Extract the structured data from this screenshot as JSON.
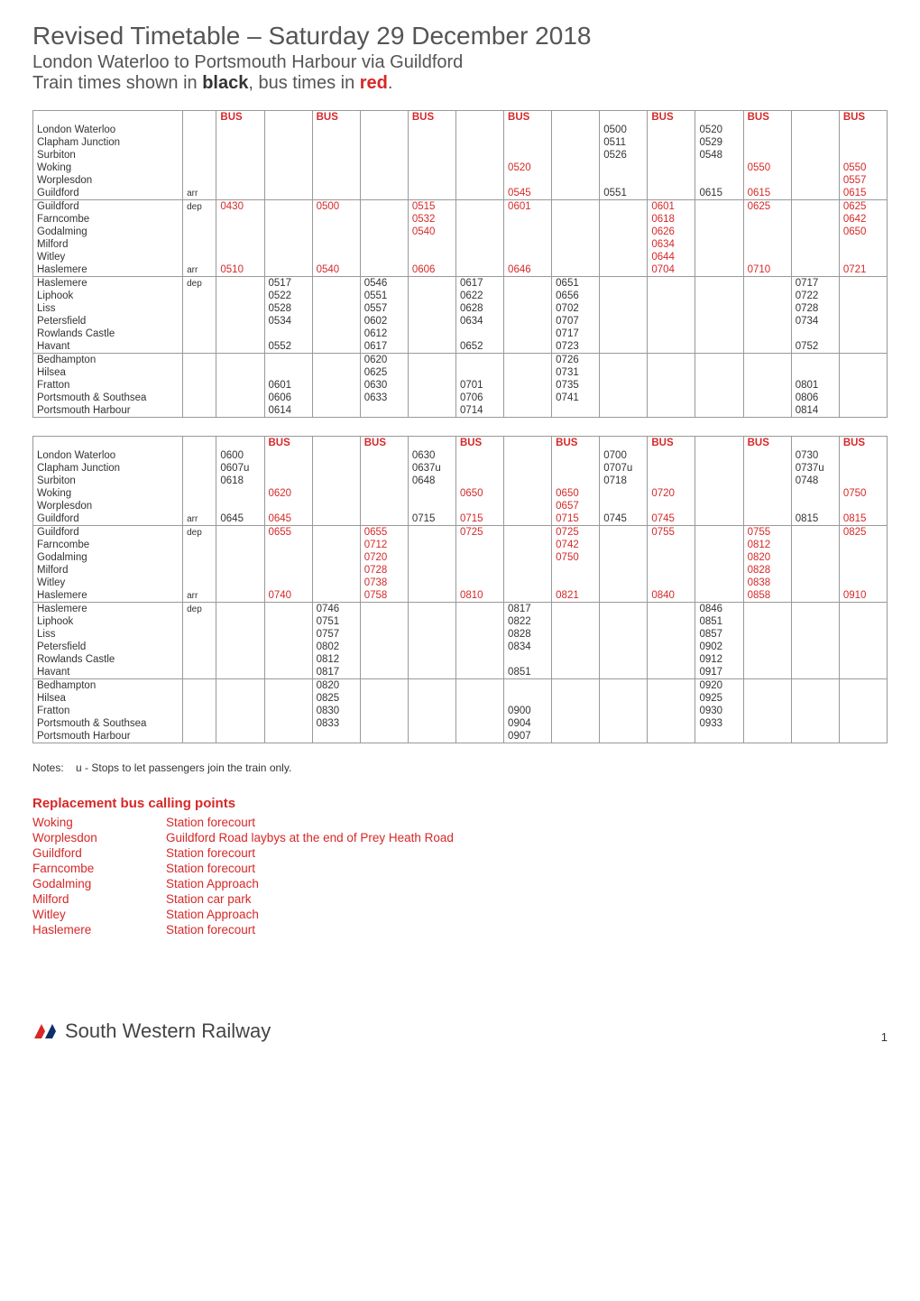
{
  "header": {
    "title": "Revised Timetable – Saturday 29 December 2018",
    "route": "London Waterloo to Portsmouth Harbour via Guildford",
    "legend_prefix": "Train times shown in ",
    "legend_black": "black",
    "legend_mid": ", bus times in ",
    "legend_red": "red",
    "legend_suffix": "."
  },
  "colors": {
    "bus": "#d62828",
    "text": "#333333",
    "border": "#999999",
    "heading": "#555555"
  },
  "bus_label": "BUS",
  "stations": [
    {
      "name": "London Waterloo",
      "ad": ""
    },
    {
      "name": "Clapham Junction",
      "ad": ""
    },
    {
      "name": "Surbiton",
      "ad": ""
    },
    {
      "name": "Woking",
      "ad": ""
    },
    {
      "name": "Worplesdon",
      "ad": ""
    },
    {
      "name": "Guildford",
      "ad": "arr"
    },
    {
      "name": "Guildford",
      "ad": "dep"
    },
    {
      "name": "Farncombe",
      "ad": ""
    },
    {
      "name": "Godalming",
      "ad": ""
    },
    {
      "name": "Milford",
      "ad": ""
    },
    {
      "name": "Witley",
      "ad": ""
    },
    {
      "name": "Haslemere",
      "ad": "arr"
    },
    {
      "name": "Haslemere",
      "ad": "dep"
    },
    {
      "name": "Liphook",
      "ad": ""
    },
    {
      "name": "Liss",
      "ad": ""
    },
    {
      "name": "Petersfield",
      "ad": ""
    },
    {
      "name": "Rowlands Castle",
      "ad": ""
    },
    {
      "name": "Havant",
      "ad": ""
    },
    {
      "name": "Bedhampton",
      "ad": ""
    },
    {
      "name": "Hilsea",
      "ad": ""
    },
    {
      "name": "Fratton",
      "ad": ""
    },
    {
      "name": "Portsmouth & Southsea",
      "ad": ""
    },
    {
      "name": "Portsmouth Harbour",
      "ad": ""
    }
  ],
  "section_breaks": [
    6,
    12,
    18
  ],
  "table1": {
    "columns": [
      {
        "bus": true,
        "times": [
          "",
          "",
          "",
          "",
          "",
          "",
          "0430",
          "",
          "",
          "",
          "",
          "0510",
          "",
          "",
          "",
          "",
          "",
          "",
          "",
          "",
          "",
          "",
          ""
        ]
      },
      {
        "bus": false,
        "times": [
          "",
          "",
          "",
          "",
          "",
          "",
          "",
          "",
          "",
          "",
          "",
          "",
          "0517",
          "0522",
          "0528",
          "0534",
          "",
          "0552",
          "",
          "",
          "0601",
          "0606",
          "0614"
        ]
      },
      {
        "bus": true,
        "times": [
          "",
          "",
          "",
          "",
          "",
          "",
          "0500",
          "",
          "",
          "",
          "",
          "0540",
          "",
          "",
          "",
          "",
          "",
          "",
          "",
          "",
          "",
          "",
          ""
        ]
      },
      {
        "bus": false,
        "times": [
          "",
          "",
          "",
          "",
          "",
          "",
          "",
          "",
          "",
          "",
          "",
          "",
          "0546",
          "0551",
          "0557",
          "0602",
          "0612",
          "0617",
          "0620",
          "0625",
          "0630",
          "0633",
          ""
        ]
      },
      {
        "bus": true,
        "times": [
          "",
          "",
          "",
          "",
          "",
          "",
          "0515",
          "0532",
          "0540",
          "",
          "",
          "0606",
          "",
          "",
          "",
          "",
          "",
          "",
          "",
          "",
          "",
          "",
          ""
        ]
      },
      {
        "bus": false,
        "times": [
          "",
          "",
          "",
          "",
          "",
          "",
          "",
          "",
          "",
          "",
          "",
          "",
          "0617",
          "0622",
          "0628",
          "0634",
          "",
          "0652",
          "",
          "",
          "0701",
          "0706",
          "0714"
        ]
      },
      {
        "bus": true,
        "times": [
          "",
          "",
          "",
          "0520",
          "",
          "0545",
          "0601",
          "",
          "",
          "",
          "",
          "0646",
          "",
          "",
          "",
          "",
          "",
          "",
          "",
          "",
          "",
          "",
          ""
        ]
      },
      {
        "bus": false,
        "times": [
          "",
          "",
          "",
          "",
          "",
          "",
          "",
          "",
          "",
          "",
          "",
          "",
          "0651",
          "0656",
          "0702",
          "0707",
          "0717",
          "0723",
          "0726",
          "0731",
          "0735",
          "0741",
          ""
        ]
      },
      {
        "bus": false,
        "times": [
          "0500",
          "0511",
          "0526",
          "",
          "",
          "0551",
          "",
          "",
          "",
          "",
          "",
          "",
          "",
          "",
          "",
          "",
          "",
          "",
          "",
          "",
          "",
          "",
          ""
        ]
      },
      {
        "bus": true,
        "times": [
          "",
          "",
          "",
          "",
          "",
          "",
          "0601",
          "0618",
          "0626",
          "0634",
          "0644",
          "0704",
          "",
          "",
          "",
          "",
          "",
          "",
          "",
          "",
          "",
          "",
          ""
        ]
      },
      {
        "bus": false,
        "times": [
          "0520",
          "0529",
          "0548",
          "",
          "",
          "0615",
          "",
          "",
          "",
          "",
          "",
          "",
          "",
          "",
          "",
          "",
          "",
          "",
          "",
          "",
          "",
          "",
          ""
        ]
      },
      {
        "bus": true,
        "times": [
          "",
          "",
          "",
          "0550",
          "",
          "0615",
          "0625",
          "",
          "",
          "",
          "",
          "0710",
          "",
          "",
          "",
          "",
          "",
          "",
          "",
          "",
          "",
          "",
          ""
        ]
      },
      {
        "bus": false,
        "times": [
          "",
          "",
          "",
          "",
          "",
          "",
          "",
          "",
          "",
          "",
          "",
          "",
          "0717",
          "0722",
          "0728",
          "0734",
          "",
          "0752",
          "",
          "",
          "0801",
          "0806",
          "0814"
        ]
      },
      {
        "bus": true,
        "times": [
          "",
          "",
          "",
          "0550",
          "0557",
          "0615",
          "0625",
          "0642",
          "0650",
          "",
          "",
          "0721",
          "",
          "",
          "",
          "",
          "",
          "",
          "",
          "",
          "",
          "",
          ""
        ]
      }
    ]
  },
  "table2": {
    "columns": [
      {
        "bus": false,
        "times": [
          "0600",
          "0607u",
          "0618",
          "",
          "",
          "0645",
          "",
          "",
          "",
          "",
          "",
          "",
          "",
          "",
          "",
          "",
          "",
          "",
          "",
          "",
          "",
          "",
          ""
        ]
      },
      {
        "bus": true,
        "times": [
          "",
          "",
          "",
          "0620",
          "",
          "0645",
          "0655",
          "",
          "",
          "",
          "",
          "0740",
          "",
          "",
          "",
          "",
          "",
          "",
          "",
          "",
          "",
          "",
          ""
        ]
      },
      {
        "bus": false,
        "times": [
          "",
          "",
          "",
          "",
          "",
          "",
          "",
          "",
          "",
          "",
          "",
          "",
          "0746",
          "0751",
          "0757",
          "0802",
          "0812",
          "0817",
          "0820",
          "0825",
          "0830",
          "0833",
          ""
        ]
      },
      {
        "bus": true,
        "times": [
          "",
          "",
          "",
          "",
          "",
          "",
          "0655",
          "0712",
          "0720",
          "0728",
          "0738",
          "0758",
          "",
          "",
          "",
          "",
          "",
          "",
          "",
          "",
          "",
          "",
          ""
        ]
      },
      {
        "bus": false,
        "times": [
          "0630",
          "0637u",
          "0648",
          "",
          "",
          "0715",
          "",
          "",
          "",
          "",
          "",
          "",
          "",
          "",
          "",
          "",
          "",
          "",
          "",
          "",
          "",
          "",
          ""
        ]
      },
      {
        "bus": true,
        "times": [
          "",
          "",
          "",
          "0650",
          "",
          "0715",
          "0725",
          "",
          "",
          "",
          "",
          "0810",
          "",
          "",
          "",
          "",
          "",
          "",
          "",
          "",
          "",
          "",
          ""
        ]
      },
      {
        "bus": false,
        "times": [
          "",
          "",
          "",
          "",
          "",
          "",
          "",
          "",
          "",
          "",
          "",
          "",
          "0817",
          "0822",
          "0828",
          "0834",
          "",
          "0851",
          "",
          "",
          "0900",
          "0904",
          "0907"
        ]
      },
      {
        "bus": true,
        "times": [
          "",
          "",
          "",
          "0650",
          "0657",
          "0715",
          "0725",
          "0742",
          "0750",
          "",
          "",
          "0821",
          "",
          "",
          "",
          "",
          "",
          "",
          "",
          "",
          "",
          "",
          ""
        ]
      },
      {
        "bus": false,
        "times": [
          "0700",
          "0707u",
          "0718",
          "",
          "",
          "0745",
          "",
          "",
          "",
          "",
          "",
          "",
          "",
          "",
          "",
          "",
          "",
          "",
          "",
          "",
          "",
          "",
          ""
        ]
      },
      {
        "bus": true,
        "times": [
          "",
          "",
          "",
          "0720",
          "",
          "0745",
          "0755",
          "",
          "",
          "",
          "",
          "0840",
          "",
          "",
          "",
          "",
          "",
          "",
          "",
          "",
          "",
          "",
          ""
        ]
      },
      {
        "bus": false,
        "times": [
          "",
          "",
          "",
          "",
          "",
          "",
          "",
          "",
          "",
          "",
          "",
          "",
          "0846",
          "0851",
          "0857",
          "0902",
          "0912",
          "0917",
          "0920",
          "0925",
          "0930",
          "0933",
          ""
        ]
      },
      {
        "bus": true,
        "times": [
          "",
          "",
          "",
          "",
          "",
          "",
          "0755",
          "0812",
          "0820",
          "0828",
          "0838",
          "0858",
          "",
          "",
          "",
          "",
          "",
          "",
          "",
          "",
          "",
          "",
          ""
        ]
      },
      {
        "bus": false,
        "times": [
          "0730",
          "0737u",
          "0748",
          "",
          "",
          "0815",
          "",
          "",
          "",
          "",
          "",
          "",
          "",
          "",
          "",
          "",
          "",
          "",
          "",
          "",
          "",
          "",
          ""
        ]
      },
      {
        "bus": true,
        "times": [
          "",
          "",
          "",
          "0750",
          "",
          "0815",
          "0825",
          "",
          "",
          "",
          "",
          "0910",
          "",
          "",
          "",
          "",
          "",
          "",
          "",
          "",
          "",
          "",
          ""
        ]
      }
    ]
  },
  "notes": {
    "label": "Notes:",
    "u": "u - Stops to let passengers join the train only."
  },
  "calling": {
    "header": "Replacement bus calling points",
    "rows": [
      {
        "station": "Woking",
        "point": "Station forecourt"
      },
      {
        "station": "Worplesdon",
        "point": "Guildford Road laybys at the end of Prey Heath Road"
      },
      {
        "station": "Guildford",
        "point": "Station forecourt"
      },
      {
        "station": "Farncombe",
        "point": "Station forecourt"
      },
      {
        "station": "Godalming",
        "point": "Station Approach"
      },
      {
        "station": "Milford",
        "point": "Station car park"
      },
      {
        "station": "Witley",
        "point": "Station Approach"
      },
      {
        "station": "Haslemere",
        "point": "Station forecourt"
      }
    ]
  },
  "footer": {
    "brand": "South Western Railway",
    "page": "1"
  }
}
